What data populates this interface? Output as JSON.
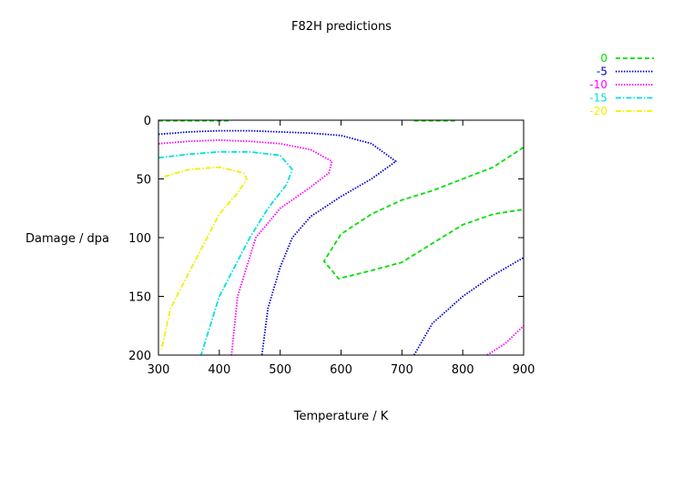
{
  "chart_data": {
    "type": "contour",
    "title": "F82H predictions",
    "xlabel": "Temperature / K",
    "ylabel": "Damage / dpa",
    "xlim": [
      300,
      900
    ],
    "ylim": [
      200,
      0
    ],
    "y_axis_inverted": true,
    "xticks": [
      300,
      400,
      500,
      600,
      700,
      800,
      900
    ],
    "yticks": [
      0,
      50,
      100,
      150,
      200
    ],
    "grid": false,
    "legend_position": "top-right",
    "series": [
      {
        "name": "0",
        "color": "#00e000",
        "dash": "dashed",
        "segments": [
          [
            [
              300,
              0.5
            ],
            [
              325,
              0.5
            ],
            [
              360,
              0.5
            ],
            [
              420,
              0.5
            ]
          ],
          [
            [
              720,
              0.5
            ],
            [
              760,
              0.5
            ],
            [
              790,
              0.5
            ]
          ],
          [
            [
              900,
              23
            ],
            [
              850,
              40
            ],
            [
              800,
              50
            ],
            [
              750,
              60
            ],
            [
              700,
              68
            ],
            [
              650,
              80
            ],
            [
              600,
              97
            ],
            [
              572,
              120
            ],
            [
              596,
              135
            ],
            [
              650,
              128
            ],
            [
              700,
              121
            ],
            [
              750,
              105
            ],
            [
              800,
              89
            ],
            [
              850,
              80
            ],
            [
              900,
              76
            ]
          ]
        ]
      },
      {
        "name": "-5",
        "color": "#0000c8",
        "dash": "dotted",
        "segments": [
          [
            [
              300,
              12
            ],
            [
              350,
              10
            ],
            [
              400,
              9
            ],
            [
              450,
              9
            ],
            [
              500,
              10
            ],
            [
              550,
              11
            ],
            [
              600,
              13
            ],
            [
              650,
              20
            ],
            [
              690,
              35
            ],
            [
              650,
              50
            ],
            [
              600,
              65
            ],
            [
              550,
              82
            ],
            [
              520,
              100
            ],
            [
              500,
              125
            ],
            [
              480,
              160
            ],
            [
              470,
              200
            ]
          ],
          [
            [
              720,
              200
            ],
            [
              750,
              173
            ],
            [
              800,
              150
            ],
            [
              850,
              132
            ],
            [
              900,
              117
            ]
          ]
        ]
      },
      {
        "name": "-10",
        "color": "#ff00ff",
        "dash": "dotted",
        "segments": [
          [
            [
              300,
              20
            ],
            [
              350,
              18
            ],
            [
              400,
              17
            ],
            [
              450,
              18
            ],
            [
              500,
              20
            ],
            [
              550,
              25
            ],
            [
              585,
              35
            ],
            [
              580,
              45
            ],
            [
              550,
              57
            ],
            [
              500,
              75
            ],
            [
              460,
              100
            ],
            [
              445,
              125
            ],
            [
              430,
              150
            ],
            [
              420,
              200
            ]
          ],
          [
            [
              840,
              200
            ],
            [
              870,
              190
            ],
            [
              900,
              175
            ]
          ]
        ]
      },
      {
        "name": "-15",
        "color": "#00e0e0",
        "dash": "dash-dot",
        "segments": [
          [
            [
              300,
              32
            ],
            [
              350,
              29
            ],
            [
              400,
              27
            ],
            [
              450,
              27
            ],
            [
              500,
              30
            ],
            [
              520,
              42
            ],
            [
              510,
              55
            ],
            [
              480,
              75
            ],
            [
              450,
              100
            ],
            [
              420,
              130
            ],
            [
              400,
              150
            ],
            [
              370,
              200
            ]
          ]
        ]
      },
      {
        "name": "-20",
        "color": "#f0f000",
        "dash": "dash-dot",
        "segments": [
          [
            [
              310,
              48
            ],
            [
              350,
              42
            ],
            [
              400,
              40
            ],
            [
              440,
              45
            ],
            [
              445,
              50
            ],
            [
              430,
              62
            ],
            [
              400,
              80
            ],
            [
              380,
              100
            ],
            [
              350,
              130
            ],
            [
              320,
              160
            ],
            [
              305,
              195
            ]
          ]
        ]
      }
    ]
  }
}
